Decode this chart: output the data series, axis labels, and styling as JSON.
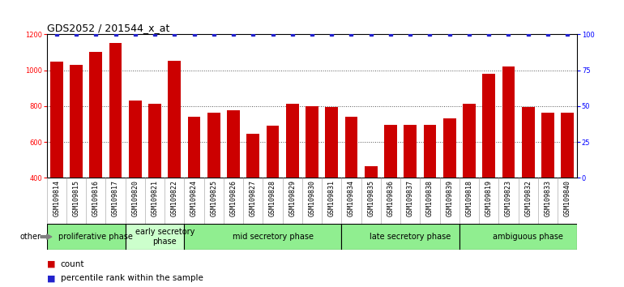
{
  "title": "GDS2052 / 201544_x_at",
  "samples": [
    "GSM109814",
    "GSM109815",
    "GSM109816",
    "GSM109817",
    "GSM109820",
    "GSM109821",
    "GSM109822",
    "GSM109824",
    "GSM109825",
    "GSM109826",
    "GSM109827",
    "GSM109828",
    "GSM109829",
    "GSM109830",
    "GSM109831",
    "GSM109834",
    "GSM109835",
    "GSM109836",
    "GSM109837",
    "GSM109838",
    "GSM109839",
    "GSM109818",
    "GSM109819",
    "GSM109823",
    "GSM109832",
    "GSM109833",
    "GSM109840"
  ],
  "counts": [
    1048,
    1030,
    1103,
    1153,
    833,
    815,
    1055,
    740,
    762,
    776,
    645,
    693,
    812,
    800,
    795,
    740,
    465,
    698,
    695,
    698,
    730,
    815,
    980,
    1020,
    797,
    765,
    765
  ],
  "percentile_ranks": [
    100,
    100,
    100,
    100,
    100,
    100,
    100,
    100,
    100,
    100,
    100,
    100,
    100,
    100,
    100,
    100,
    100,
    100,
    100,
    100,
    100,
    100,
    100,
    100,
    100,
    100,
    100
  ],
  "bar_color": "#cc0000",
  "dot_color": "#2222cc",
  "ylim_left": [
    400,
    1200
  ],
  "ylim_right": [
    0,
    100
  ],
  "yticks_left": [
    400,
    600,
    800,
    1000,
    1200
  ],
  "yticks_right": [
    0,
    25,
    50,
    75,
    100
  ],
  "groups": [
    {
      "label": "proliferative phase",
      "start": 0,
      "end": 4,
      "color": "#90ee90"
    },
    {
      "label": "early secretory\nphase",
      "start": 4,
      "end": 7,
      "color": "#ccffcc"
    },
    {
      "label": "mid secretory phase",
      "start": 7,
      "end": 15,
      "color": "#90ee90"
    },
    {
      "label": "late secretory phase",
      "start": 15,
      "end": 21,
      "color": "#90ee90"
    },
    {
      "label": "ambiguous phase",
      "start": 21,
      "end": 27,
      "color": "#90ee90"
    }
  ],
  "other_label": "other",
  "legend_count_label": "count",
  "legend_pct_label": "percentile rank within the sample",
  "bar_color_legend": "#cc0000",
  "dot_color_legend": "#2222cc",
  "xtick_bg": "#d0d0d0",
  "plot_bg": "#ffffff",
  "grid_color": "#555555",
  "title_fontsize": 9,
  "tick_fontsize": 6,
  "group_fontsize": 7,
  "legend_fontsize": 7.5
}
